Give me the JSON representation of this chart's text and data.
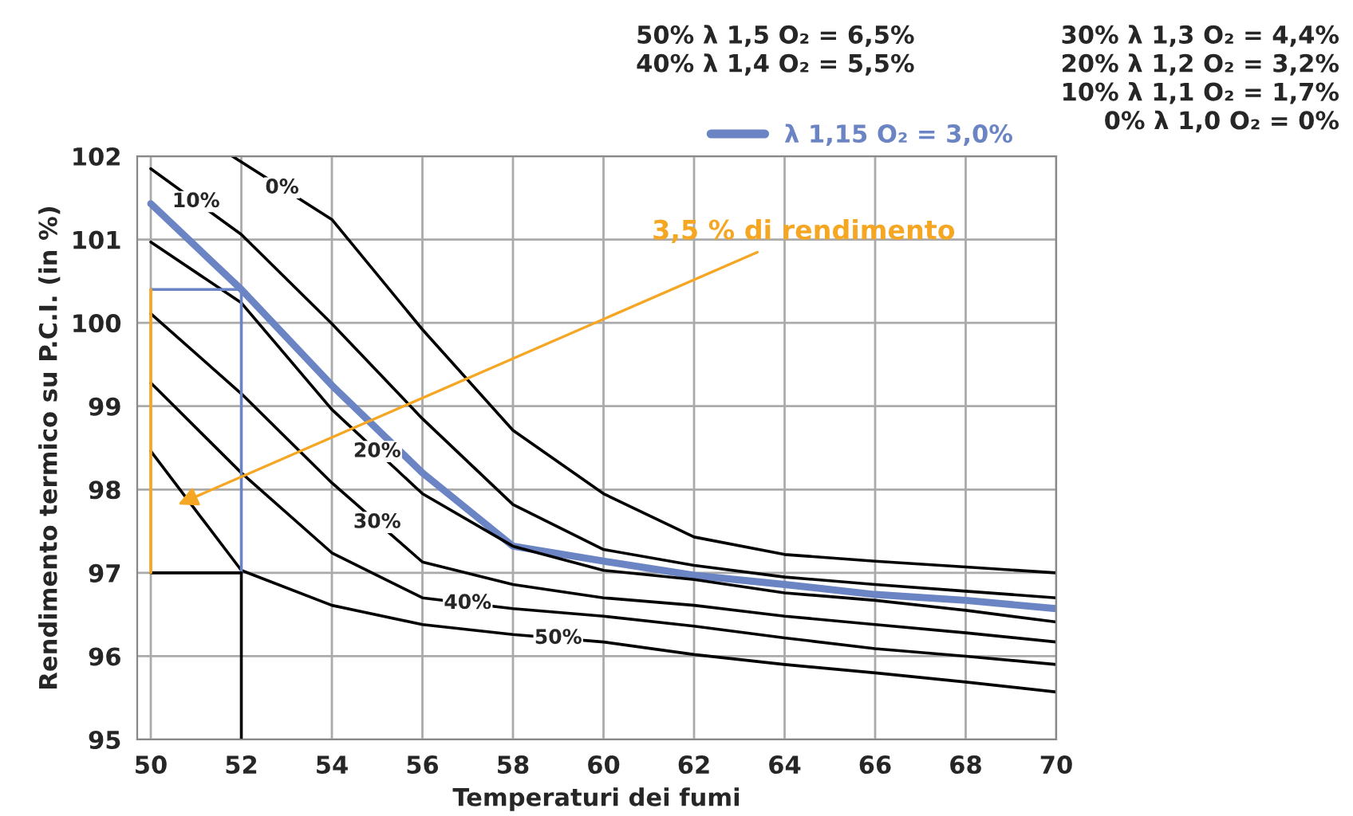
{
  "chart_data": {
    "type": "line",
    "xlabel": "Temperaturi dei fumi",
    "ylabel": "Rendimento termico su P.C.I. (in %)",
    "xlim": [
      49.7,
      70
    ],
    "ylim": [
      95,
      102
    ],
    "xticks": [
      50,
      52,
      54,
      56,
      58,
      60,
      62,
      64,
      66,
      68,
      70
    ],
    "yticks": [
      95,
      96,
      97,
      98,
      99,
      100,
      101,
      102
    ],
    "grid": true,
    "legend": "top right",
    "series": [
      {
        "name": "0%",
        "color": "#000000",
        "x": [
          51.8,
          54,
          56,
          58,
          60,
          62,
          64,
          66,
          68,
          70
        ],
        "values": [
          102,
          101.24,
          99.92,
          98.71,
          97.95,
          97.43,
          97.22,
          97.14,
          97.07,
          97.0
        ]
      },
      {
        "name": "10%",
        "color": "#000000",
        "x": [
          50,
          52,
          54,
          56,
          58,
          60,
          62,
          64,
          66,
          68,
          70
        ],
        "values": [
          101.85,
          101.06,
          99.99,
          98.85,
          97.82,
          97.28,
          97.09,
          96.95,
          96.86,
          96.78,
          96.7
        ]
      },
      {
        "name": "λ 1,15 O₂ = 3,0%",
        "color": "#6b84c4",
        "x": [
          50,
          52,
          54,
          56,
          58,
          60,
          62,
          64,
          66,
          68,
          70
        ],
        "values": [
          101.43,
          100.4,
          99.25,
          98.2,
          97.32,
          97.14,
          96.97,
          96.86,
          96.74,
          96.67,
          96.57
        ]
      },
      {
        "name": "20%",
        "color": "#000000",
        "x": [
          50,
          52,
          54,
          56,
          58,
          60,
          62,
          64,
          66,
          68,
          70
        ],
        "values": [
          100.97,
          100.24,
          98.96,
          97.95,
          97.32,
          97.03,
          96.92,
          96.76,
          96.67,
          96.55,
          96.41
        ]
      },
      {
        "name": "30%",
        "color": "#000000",
        "x": [
          50,
          52,
          54,
          56,
          58,
          60,
          62,
          64,
          66,
          68,
          70
        ],
        "values": [
          100.11,
          99.15,
          98.08,
          97.13,
          96.86,
          96.7,
          96.61,
          96.48,
          96.38,
          96.28,
          96.17
        ]
      },
      {
        "name": "40%",
        "color": "#000000",
        "x": [
          50,
          52,
          54,
          56,
          58,
          60,
          62,
          64,
          66,
          68,
          70
        ],
        "values": [
          99.28,
          98.2,
          97.24,
          96.7,
          96.57,
          96.48,
          96.36,
          96.22,
          96.09,
          96.0,
          95.9
        ]
      },
      {
        "name": "50%",
        "color": "#000000",
        "x": [
          50,
          52,
          54,
          56,
          58,
          60,
          62,
          64,
          66,
          68,
          70
        ],
        "values": [
          98.46,
          97.03,
          96.61,
          96.38,
          96.26,
          96.17,
          96.02,
          95.9,
          95.8,
          95.69,
          95.57
        ]
      },
      {
        "color": "#6b84c4",
        "x": [
          52,
          52,
          50
        ],
        "values": [
          97,
          100.4,
          100.4
        ]
      },
      {
        "color": "#000000",
        "x": [
          52,
          52,
          50
        ],
        "values": [
          95,
          97,
          97
        ]
      },
      {
        "color": "#f5a623",
        "x": [
          50,
          50
        ],
        "values": [
          97,
          100.4
        ]
      }
    ],
    "annotations": [
      "50% λ 1,5 O₂ = 6,5%",
      "40% λ 1,4 O₂ = 5,5%",
      "30% λ 1,3 O₂ = 4,4%",
      "20% λ 1,2 O₂ = 3,2%",
      "10% λ 1,1 O₂ = 1,7%",
      "0% λ 1,0 O₂ = 0%",
      "3,5 % di rendimento"
    ]
  }
}
